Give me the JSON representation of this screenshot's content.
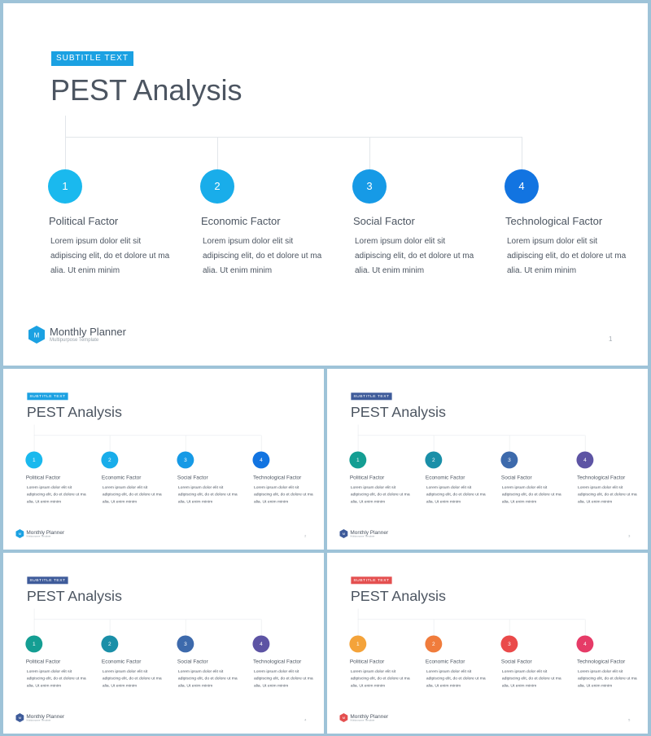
{
  "slides": [
    {
      "id": "large",
      "subtitle": "SUBTITLE TEXT",
      "title": "PEST Analysis",
      "badge_color": "#1ba1e2",
      "logo_color": "#1ba1e2",
      "colors": [
        "#1ab9ee",
        "#19adea",
        "#169ae6",
        "#1274e1"
      ],
      "factors": [
        {
          "num": "1",
          "title": "Political Factor",
          "desc": "Lorem ipsum dolor elit sit adipiscing elit, do et dolore ut ma alia. Ut enim minim"
        },
        {
          "num": "2",
          "title": "Economic Factor",
          "desc": "Lorem ipsum dolor elit sit adipiscing elit, do et dolore ut ma alia. Ut enim minim"
        },
        {
          "num": "3",
          "title": "Social Factor",
          "desc": "Lorem ipsum dolor elit sit adipiscing elit, do et dolore ut ma alia. Ut enim minim"
        },
        {
          "num": "4",
          "title": "Technological Factor",
          "desc": "Lorem ipsum dolor elit sit adipiscing elit, do et dolore ut ma alia. Ut enim minim"
        }
      ],
      "brand_name": "Monthly Planner",
      "brand_sub": "Multipurpose  Template",
      "page": "1"
    },
    {
      "id": "s1",
      "subtitle": "SUBTITLE TEXT",
      "title": "PEST Analysis",
      "badge_color": "#1ba1e2",
      "logo_color": "#1ba1e2",
      "colors": [
        "#1ab9ee",
        "#19adea",
        "#169ae6",
        "#1274e1"
      ],
      "factors": [
        {
          "num": "1",
          "title": "Political Factor",
          "desc": "Lorem ipsum dolor elit sit adipiscing elit, do et dolore ut ma alia. Ut enim minim"
        },
        {
          "num": "2",
          "title": "Economic Factor",
          "desc": "Lorem ipsum dolor elit sit adipiscing elit, do et dolore ut ma alia. Ut enim minim"
        },
        {
          "num": "3",
          "title": "Social Factor",
          "desc": "Lorem ipsum dolor elit sit adipiscing elit, do et dolore ut ma alia. Ut enim minim"
        },
        {
          "num": "4",
          "title": "Technological Factor",
          "desc": "Lorem ipsum dolor elit sit adipiscing elit, do et dolore ut ma alia. Ut enim minim"
        }
      ],
      "brand_name": "Monthly Planner",
      "brand_sub": "Multipurpose  Template",
      "page": "2"
    },
    {
      "id": "s2",
      "subtitle": "SUBTITLE TEXT",
      "title": "PEST Analysis",
      "badge_color": "#3e5b9a",
      "logo_color": "#3e5b9a",
      "colors": [
        "#149e93",
        "#1a8fa8",
        "#3d6aac",
        "#5d54a4"
      ],
      "factors": [
        {
          "num": "1",
          "title": "Political Factor",
          "desc": "Lorem ipsum dolor elit sit adipiscing elit, do et dolore ut ma alia. Ut enim minim"
        },
        {
          "num": "2",
          "title": "Economic Factor",
          "desc": "Lorem ipsum dolor elit sit adipiscing elit, do et dolore ut ma alia. Ut enim minim"
        },
        {
          "num": "3",
          "title": "Social Factor",
          "desc": "Lorem ipsum dolor elit sit adipiscing elit, do et dolore ut ma alia. Ut enim minim"
        },
        {
          "num": "4",
          "title": "Technological Factor",
          "desc": "Lorem ipsum dolor elit sit adipiscing elit, do et dolore ut ma alia. Ut enim minim"
        }
      ],
      "brand_name": "Monthly Planner",
      "brand_sub": "Multipurpose  Template",
      "page": "3"
    },
    {
      "id": "s3",
      "subtitle": "SUBTITLE TEXT",
      "title": "PEST Analysis",
      "badge_color": "#3e5b9a",
      "logo_color": "#3e5b9a",
      "colors": [
        "#149e93",
        "#1a8fa8",
        "#3d6aac",
        "#5d54a4"
      ],
      "factors": [
        {
          "num": "1",
          "title": "Political Factor",
          "desc": "Lorem ipsum dolor elit sit adipiscing elit, do et dolore ut ma alia. Ut enim minim"
        },
        {
          "num": "2",
          "title": "Economic Factor",
          "desc": "Lorem ipsum dolor elit sit adipiscing elit, do et dolore ut ma alia. Ut enim minim"
        },
        {
          "num": "3",
          "title": "Social Factor",
          "desc": "Lorem ipsum dolor elit sit adipiscing elit, do et dolore ut ma alia. Ut enim minim"
        },
        {
          "num": "4",
          "title": "Technological Factor",
          "desc": "Lorem ipsum dolor elit sit adipiscing elit, do et dolore ut ma alia. Ut enim minim"
        }
      ],
      "brand_name": "Monthly Planner",
      "brand_sub": "Multipurpose  Template",
      "page": "4"
    },
    {
      "id": "s4",
      "subtitle": "SUBTITLE TEXT",
      "title": "PEST Analysis",
      "badge_color": "#e44f4f",
      "logo_color": "#e44f4f",
      "colors": [
        "#f4a33a",
        "#f07c3c",
        "#ea4a4a",
        "#e63b67"
      ],
      "factors": [
        {
          "num": "1",
          "title": "Political Factor",
          "desc": "Lorem ipsum dolor elit sit adipiscing elit, do et dolore ut ma alia. Ut enim minim"
        },
        {
          "num": "2",
          "title": "Economic Factor",
          "desc": "Lorem ipsum dolor elit sit adipiscing elit, do et dolore ut ma alia. Ut enim minim"
        },
        {
          "num": "3",
          "title": "Social Factor",
          "desc": "Lorem ipsum dolor elit sit adipiscing elit, do et dolore ut ma alia. Ut enim minim"
        },
        {
          "num": "4",
          "title": "Technological Factor",
          "desc": "Lorem ipsum dolor elit sit adipiscing elit, do et dolore ut ma alia. Ut enim minim"
        }
      ],
      "brand_name": "Monthly Planner",
      "brand_sub": "Multipurpose  Template",
      "page": "5"
    }
  ],
  "logo_letter": "M",
  "icons": {
    "logo": "hexagon-logo-icon"
  }
}
